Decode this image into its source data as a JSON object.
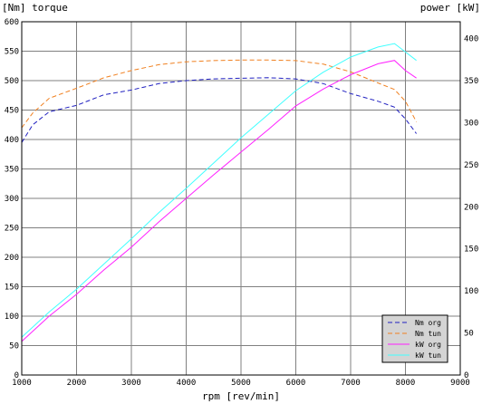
{
  "chart_data": {
    "type": "line",
    "title_left": "[Nm] torque",
    "title_right": "power [kW]",
    "xlabel": "rpm [rev/min]",
    "xlim": [
      1000,
      9000
    ],
    "ylim_left": [
      0,
      600
    ],
    "ylim_right": [
      0,
      420
    ],
    "x_ticks": [
      "1000",
      "2000",
      "3000",
      "4000",
      "5000",
      "6000",
      "7000",
      "8000",
      "9000"
    ],
    "y_left_ticks": [
      "0",
      "50",
      "100",
      "150",
      "200",
      "250",
      "300",
      "350",
      "400",
      "450",
      "500",
      "550",
      "600"
    ],
    "y_right_ticks": [
      "0",
      "50",
      "100",
      "150",
      "200",
      "250",
      "300",
      "350",
      "400"
    ],
    "grid": true,
    "legend_position": "bottom-right",
    "series": [
      {
        "name": "Nm org",
        "axis": "left",
        "color": "#2020c0",
        "dash": "5,3",
        "x": [
          1000,
          1200,
          1500,
          2000,
          2500,
          3000,
          3500,
          4000,
          4500,
          5000,
          5500,
          6000,
          6500,
          7000,
          7500,
          7800,
          8000,
          8200
        ],
        "y": [
          395,
          425,
          447,
          458,
          476,
          484,
          495,
          500,
          503,
          504,
          505,
          503,
          495,
          478,
          465,
          455,
          435,
          410
        ]
      },
      {
        "name": "Nm tun",
        "axis": "left",
        "color": "#f08020",
        "dash": "5,3",
        "x": [
          1000,
          1200,
          1500,
          2000,
          2500,
          3000,
          3500,
          4000,
          4500,
          5000,
          5500,
          6000,
          6500,
          7000,
          7500,
          7800,
          8000,
          8200
        ],
        "y": [
          420,
          445,
          470,
          487,
          505,
          517,
          527,
          532,
          534,
          535,
          535,
          534,
          528,
          515,
          496,
          485,
          465,
          430
        ]
      },
      {
        "name": "kW org",
        "axis": "right",
        "color": "#ff20ff",
        "dash": "",
        "x": [
          1000,
          1500,
          2000,
          2500,
          3000,
          3500,
          4000,
          4500,
          5000,
          5500,
          6000,
          6500,
          7000,
          7500,
          7800,
          8000,
          8200
        ],
        "y": [
          40,
          70,
          96,
          125,
          152,
          182,
          210,
          238,
          265,
          292,
          320,
          340,
          357,
          370,
          374,
          362,
          353
        ]
      },
      {
        "name": "kW tun",
        "axis": "right",
        "color": "#40ffff",
        "dash": "",
        "x": [
          1000,
          1500,
          2000,
          2500,
          3000,
          3500,
          4000,
          4500,
          5000,
          5500,
          6000,
          6500,
          7000,
          7500,
          7800,
          8000,
          8200
        ],
        "y": [
          45,
          75,
          102,
          132,
          162,
          193,
          222,
          252,
          282,
          310,
          338,
          360,
          378,
          390,
          394,
          384,
          374
        ]
      }
    ]
  }
}
